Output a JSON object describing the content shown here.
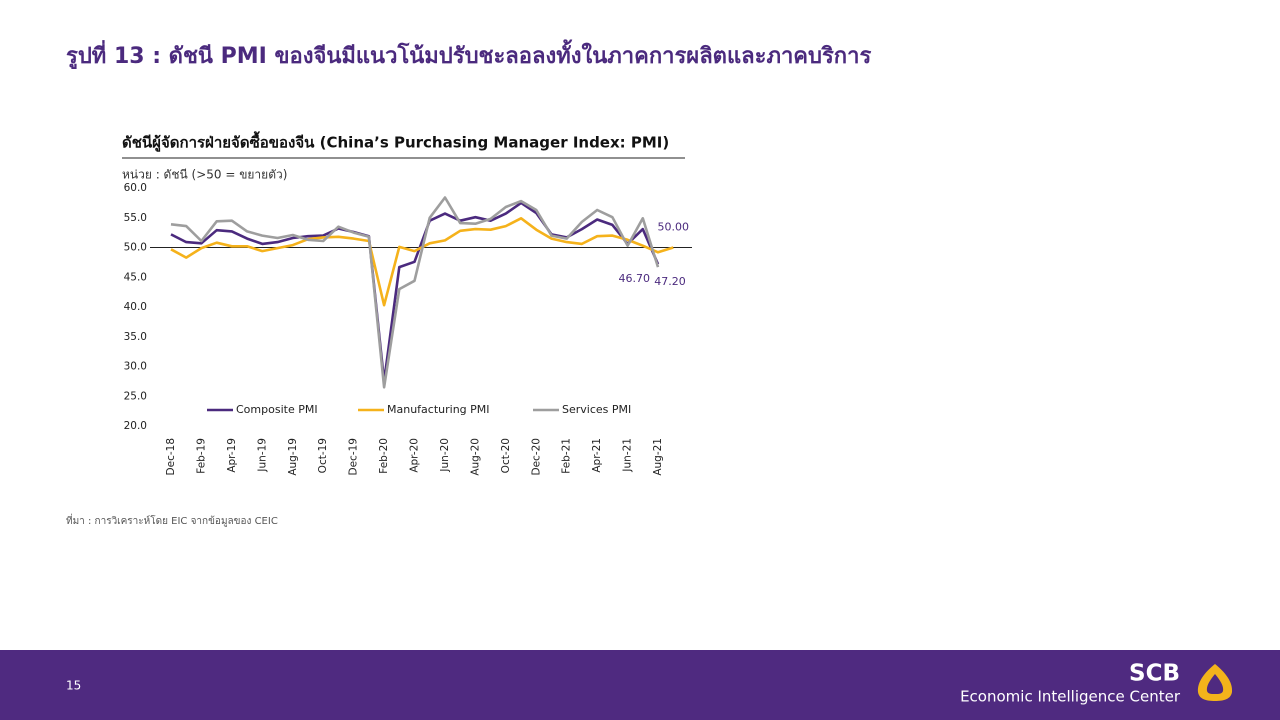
{
  "slide_title": "รูปที่ 13 : ดัชนี PMI ของจีนมีแนวโน้มปรับชะลอลงทั้งในภาคการผลิตและภาคบริการ",
  "chart_data": {
    "type": "line",
    "title": "ดัชนีผู้จัดการฝ่ายจัดซื้อของจีน (China’s Purchasing Manager Index: PMI)",
    "subtitle": "หน่วย : ดัชนี (>50 = ขยายตัว)",
    "categories": [
      "Dec-18",
      null,
      "Feb-19",
      null,
      "Apr-19",
      null,
      "Jun-19",
      null,
      "Aug-19",
      null,
      "Oct-19",
      null,
      "Dec-19",
      null,
      "Feb-20",
      null,
      "Apr-20",
      null,
      "Jun-20",
      null,
      "Aug-20",
      null,
      "Oct-20",
      null,
      "Dec-20",
      null,
      "Feb-21",
      null,
      "Apr-21",
      null,
      "Jun-21",
      null,
      "Aug-21",
      null
    ],
    "series": [
      {
        "name": "Composite PMI",
        "color": "#4b2a7e",
        "values": [
          52.2,
          50.9,
          50.7,
          52.9,
          52.7,
          51.5,
          50.6,
          50.9,
          51.6,
          51.9,
          52.0,
          53.2,
          52.6,
          51.9,
          27.5,
          46.7,
          47.6,
          54.5,
          55.7,
          54.5,
          55.1,
          54.5,
          55.7,
          57.5,
          55.8,
          52.2,
          51.7,
          53.1,
          54.7,
          53.8,
          50.6,
          53.1,
          47.2,
          null
        ],
        "value_labels": [
          null,
          null,
          null,
          null,
          null,
          null,
          null,
          null,
          null,
          null,
          null,
          null,
          null,
          null,
          null,
          null,
          null,
          null,
          null,
          null,
          null,
          null,
          null,
          null,
          null,
          null,
          null,
          null,
          null,
          null,
          null,
          null,
          "47.20",
          null
        ]
      },
      {
        "name": "Manufacturing PMI",
        "color": "#f5b21b",
        "values": [
          49.7,
          48.3,
          49.9,
          50.8,
          50.2,
          50.2,
          49.4,
          49.9,
          50.4,
          51.4,
          51.7,
          51.8,
          51.5,
          51.1,
          40.3,
          50.1,
          49.4,
          50.7,
          51.2,
          52.8,
          53.1,
          53.0,
          53.6,
          54.9,
          53.0,
          51.5,
          50.9,
          50.6,
          51.9,
          52.0,
          51.3,
          50.3,
          49.2,
          50.0
        ],
        "value_labels": [
          null,
          null,
          null,
          null,
          null,
          null,
          null,
          null,
          null,
          null,
          null,
          null,
          null,
          null,
          null,
          null,
          null,
          null,
          null,
          null,
          null,
          null,
          null,
          null,
          null,
          null,
          null,
          null,
          null,
          null,
          null,
          null,
          null,
          "50.00"
        ]
      },
      {
        "name": "Services PMI",
        "color": "#9e9e9e",
        "values": [
          53.9,
          53.6,
          51.1,
          54.4,
          54.5,
          52.7,
          52.0,
          51.6,
          52.1,
          51.3,
          51.1,
          53.5,
          52.5,
          51.8,
          26.5,
          43.0,
          44.4,
          55.0,
          58.4,
          54.1,
          54.0,
          54.8,
          56.8,
          57.8,
          56.3,
          52.0,
          51.5,
          54.3,
          56.3,
          55.1,
          50.3,
          54.9,
          46.7,
          null
        ],
        "value_labels": [
          null,
          null,
          null,
          null,
          null,
          null,
          null,
          null,
          null,
          null,
          null,
          null,
          null,
          null,
          null,
          null,
          null,
          null,
          null,
          null,
          null,
          null,
          null,
          null,
          null,
          null,
          null,
          null,
          null,
          null,
          null,
          null,
          "46.70",
          null
        ]
      }
    ],
    "ylim": [
      20,
      60
    ],
    "yticks": [
      {
        "value": 20,
        "label": "20.0"
      },
      {
        "value": 25,
        "label": "25.0"
      },
      {
        "value": 30,
        "label": "30.0"
      },
      {
        "value": 35,
        "label": "35.0"
      },
      {
        "value": 40,
        "label": "40.0"
      },
      {
        "value": 45,
        "label": "45.0"
      },
      {
        "value": 50,
        "label": "50.0"
      },
      {
        "value": 55,
        "label": "55.0"
      },
      {
        "value": 60,
        "label": "60.0"
      }
    ],
    "reference_line": 50,
    "grid": false,
    "legend": "bottom"
  },
  "source": "ที่มา : การวิเคราะห์โดย EIC จากข้อมูลของ CEIC",
  "page_number": "15",
  "logo": {
    "name": "SCB",
    "tagline": "Economic Intelligence Center"
  }
}
